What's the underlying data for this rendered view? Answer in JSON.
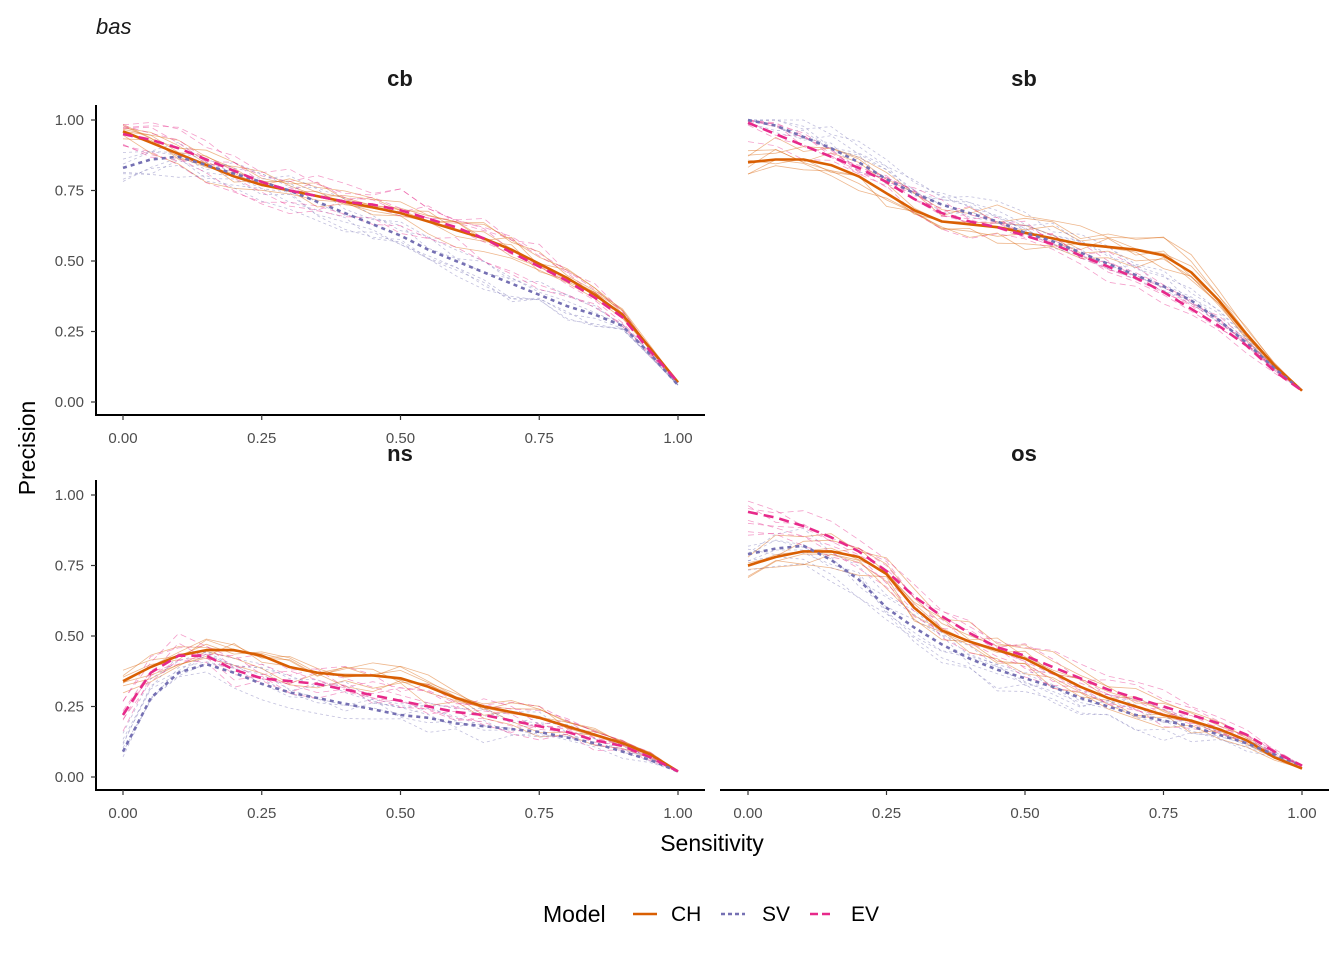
{
  "plot_title": "bas",
  "colors": {
    "CH": "#d95f02",
    "SV": "#7570b3",
    "EV": "#e7298a"
  },
  "chart_data": {
    "type": "line",
    "title": "bas",
    "xlabel": "Sensitivity",
    "ylabel": "Precision",
    "xlim": [
      0,
      1
    ],
    "ylim": [
      0,
      1
    ],
    "x_ticks": [
      "0.00",
      "0.25",
      "0.50",
      "0.75",
      "1.00"
    ],
    "y_ticks": [
      "0.00",
      "0.25",
      "0.50",
      "0.75",
      "1.00"
    ],
    "grid": false,
    "legend": {
      "title": "Model",
      "position": "bottom",
      "entries": [
        "CH",
        "SV",
        "EV"
      ]
    },
    "x": [
      0.0,
      0.05,
      0.1,
      0.15,
      0.2,
      0.25,
      0.3,
      0.35,
      0.4,
      0.45,
      0.5,
      0.55,
      0.6,
      0.65,
      0.7,
      0.75,
      0.8,
      0.85,
      0.9,
      0.95,
      1.0
    ],
    "panels": [
      {
        "name": "cb",
        "series": [
          {
            "name": "CH",
            "values": [
              0.96,
              0.92,
              0.88,
              0.84,
              0.8,
              0.77,
              0.75,
              0.73,
              0.71,
              0.69,
              0.67,
              0.64,
              0.61,
              0.58,
              0.54,
              0.49,
              0.44,
              0.38,
              0.31,
              0.19,
              0.07
            ]
          },
          {
            "name": "SV",
            "values": [
              0.83,
              0.86,
              0.87,
              0.84,
              0.81,
              0.78,
              0.75,
              0.71,
              0.67,
              0.63,
              0.59,
              0.54,
              0.5,
              0.46,
              0.42,
              0.38,
              0.34,
              0.31,
              0.27,
              0.17,
              0.06
            ]
          },
          {
            "name": "EV",
            "values": [
              0.95,
              0.93,
              0.9,
              0.86,
              0.82,
              0.78,
              0.75,
              0.73,
              0.71,
              0.7,
              0.68,
              0.65,
              0.62,
              0.58,
              0.53,
              0.48,
              0.43,
              0.37,
              0.3,
              0.18,
              0.07
            ]
          }
        ]
      },
      {
        "name": "sb",
        "series": [
          {
            "name": "CH",
            "values": [
              0.85,
              0.86,
              0.86,
              0.84,
              0.8,
              0.74,
              0.68,
              0.64,
              0.63,
              0.62,
              0.6,
              0.58,
              0.56,
              0.55,
              0.54,
              0.52,
              0.46,
              0.36,
              0.24,
              0.13,
              0.04
            ]
          },
          {
            "name": "SV",
            "values": [
              1.0,
              0.98,
              0.94,
              0.9,
              0.85,
              0.79,
              0.74,
              0.7,
              0.67,
              0.64,
              0.6,
              0.57,
              0.53,
              0.49,
              0.45,
              0.41,
              0.36,
              0.29,
              0.21,
              0.12,
              0.04
            ]
          },
          {
            "name": "EV",
            "values": [
              0.99,
              0.95,
              0.91,
              0.87,
              0.83,
              0.78,
              0.72,
              0.67,
              0.64,
              0.62,
              0.59,
              0.56,
              0.52,
              0.48,
              0.44,
              0.39,
              0.33,
              0.27,
              0.2,
              0.11,
              0.04
            ]
          }
        ]
      },
      {
        "name": "ns",
        "series": [
          {
            "name": "CH",
            "values": [
              0.34,
              0.39,
              0.43,
              0.45,
              0.45,
              0.43,
              0.39,
              0.37,
              0.36,
              0.36,
              0.35,
              0.32,
              0.28,
              0.25,
              0.23,
              0.21,
              0.18,
              0.15,
              0.12,
              0.08,
              0.02
            ]
          },
          {
            "name": "SV",
            "values": [
              0.09,
              0.28,
              0.37,
              0.4,
              0.37,
              0.33,
              0.3,
              0.28,
              0.26,
              0.24,
              0.22,
              0.21,
              0.19,
              0.18,
              0.17,
              0.16,
              0.14,
              0.12,
              0.09,
              0.06,
              0.02
            ]
          },
          {
            "name": "EV",
            "values": [
              0.22,
              0.37,
              0.43,
              0.43,
              0.38,
              0.35,
              0.34,
              0.33,
              0.31,
              0.29,
              0.27,
              0.25,
              0.23,
              0.22,
              0.2,
              0.18,
              0.16,
              0.13,
              0.11,
              0.07,
              0.02
            ]
          }
        ]
      },
      {
        "name": "os",
        "series": [
          {
            "name": "CH",
            "values": [
              0.75,
              0.78,
              0.8,
              0.8,
              0.78,
              0.72,
              0.6,
              0.52,
              0.48,
              0.45,
              0.42,
              0.37,
              0.32,
              0.28,
              0.25,
              0.22,
              0.2,
              0.17,
              0.13,
              0.07,
              0.03
            ]
          },
          {
            "name": "SV",
            "values": [
              0.79,
              0.81,
              0.82,
              0.77,
              0.7,
              0.6,
              0.53,
              0.47,
              0.42,
              0.38,
              0.35,
              0.32,
              0.28,
              0.25,
              0.22,
              0.2,
              0.18,
              0.15,
              0.12,
              0.08,
              0.04
            ]
          },
          {
            "name": "EV",
            "values": [
              0.94,
              0.92,
              0.89,
              0.85,
              0.8,
              0.73,
              0.64,
              0.57,
              0.51,
              0.46,
              0.43,
              0.39,
              0.35,
              0.31,
              0.28,
              0.25,
              0.22,
              0.19,
              0.15,
              0.09,
              0.04
            ]
          }
        ]
      }
    ]
  }
}
